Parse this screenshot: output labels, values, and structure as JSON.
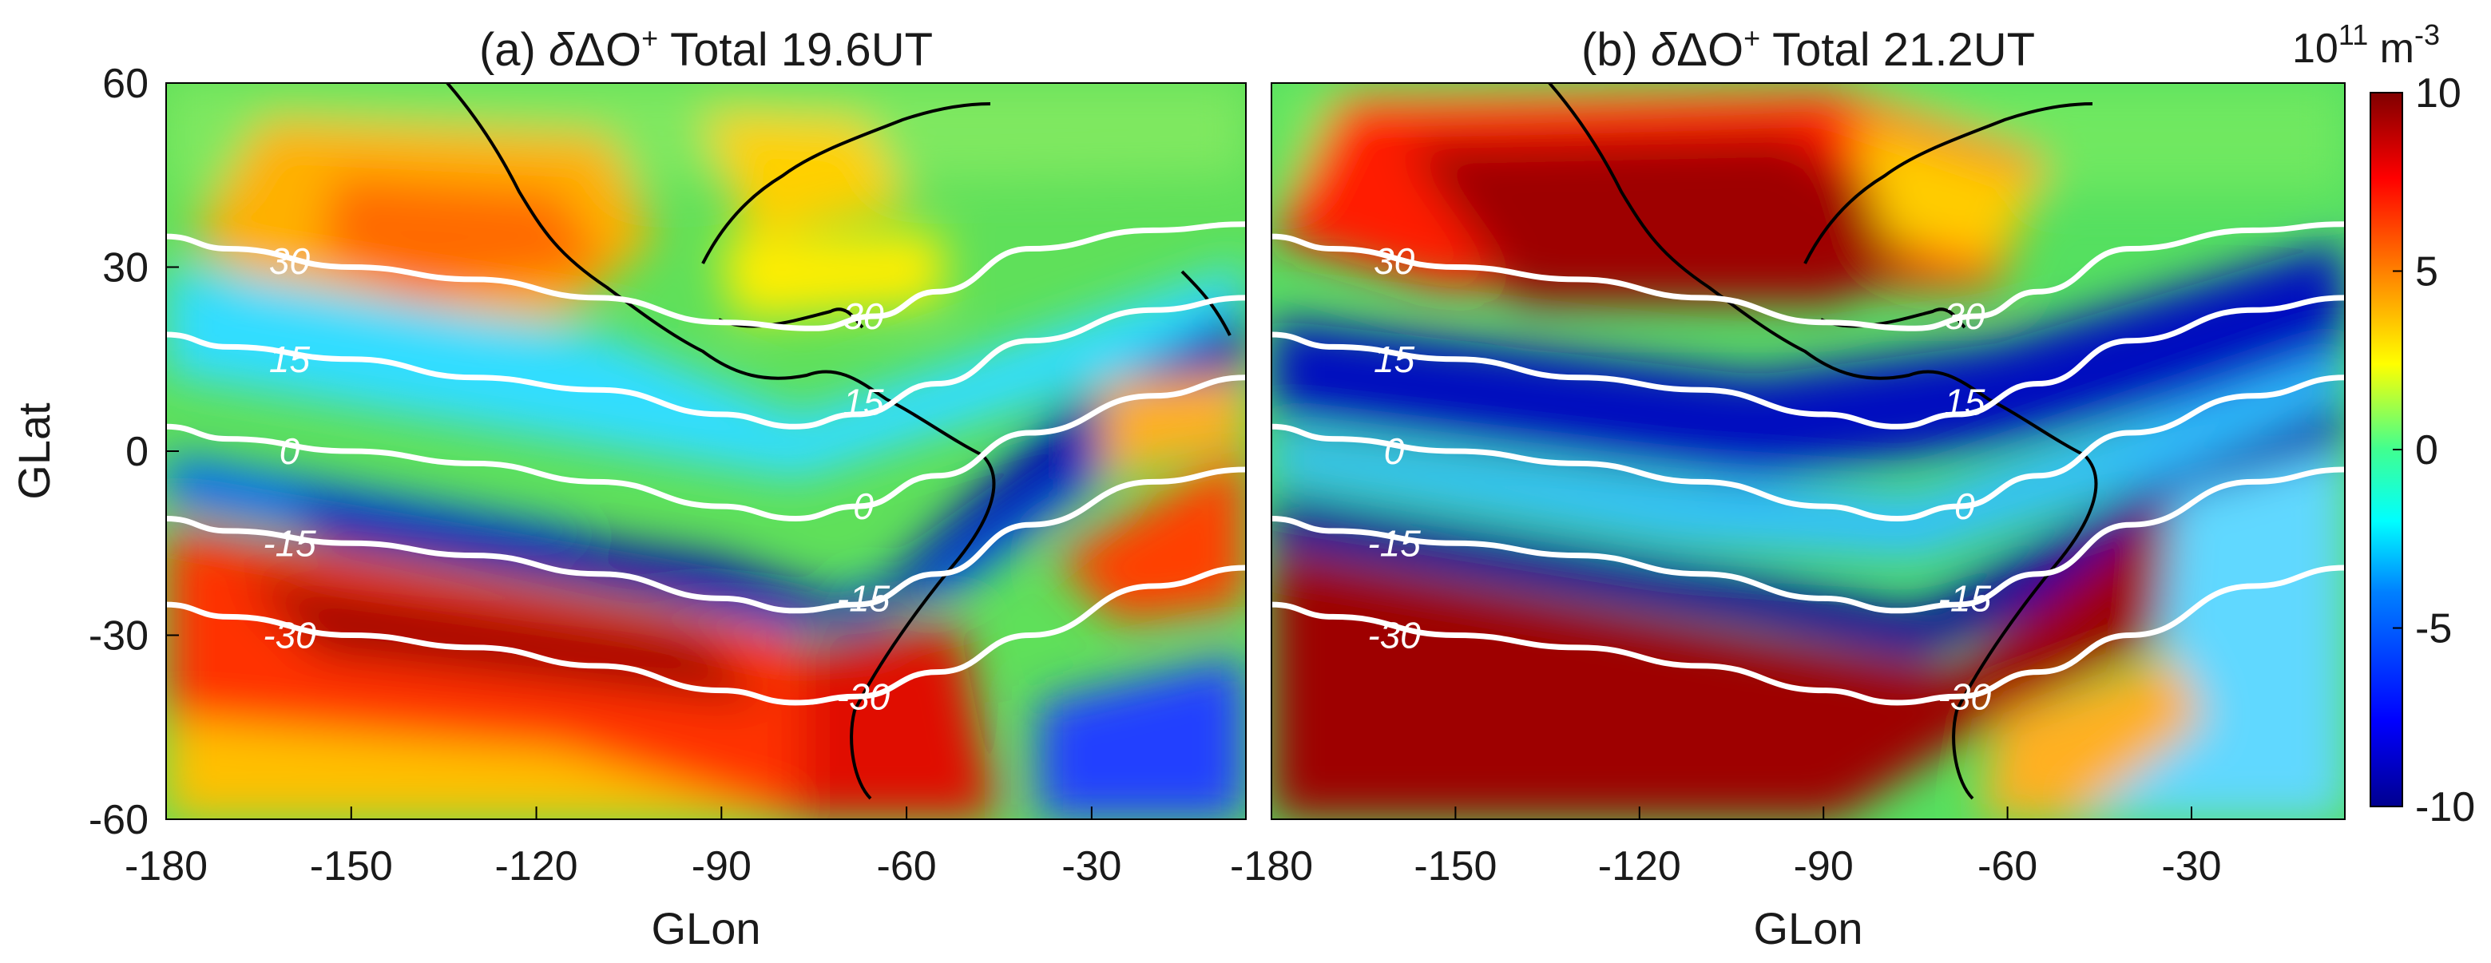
{
  "chart_data": [
    {
      "panel": "a",
      "type": "heatmap",
      "title": "(a) δΔO⁺ Total 19.6UT",
      "title_parts": {
        "prefix": "(a) ",
        "delta_var": "δ",
        "species": "ΔO",
        "sup": "+",
        "suffix": " Total 19.6UT"
      },
      "xlabel": "GLon",
      "ylabel": "GLat",
      "xlim": [
        -180,
        -5
      ],
      "ylim": [
        -60,
        60
      ],
      "xticks": [
        "-180",
        "-150",
        "-120",
        "-90",
        "-60",
        "-30"
      ],
      "yticks": [
        "60",
        "30",
        "0",
        "-30",
        "-60"
      ],
      "contour_lines": [
        {
          "level": 30,
          "label": "30",
          "points": [
            [
              -180,
              35
            ],
            [
              -170,
              33
            ],
            [
              -150,
              30
            ],
            [
              -130,
              28
            ],
            [
              -110,
              25
            ],
            [
              -90,
              21
            ],
            [
              -75,
              20
            ],
            [
              -65,
              22
            ],
            [
              -55,
              26
            ],
            [
              -40,
              33
            ],
            [
              -20,
              36
            ],
            [
              -5,
              37
            ]
          ]
        },
        {
          "level": 15,
          "label": "15",
          "points": [
            [
              -180,
              19
            ],
            [
              -170,
              17
            ],
            [
              -150,
              15
            ],
            [
              -130,
              12
            ],
            [
              -110,
              10
            ],
            [
              -90,
              6
            ],
            [
              -78,
              4
            ],
            [
              -68,
              6
            ],
            [
              -55,
              11
            ],
            [
              -40,
              18
            ],
            [
              -20,
              23
            ],
            [
              -5,
              25
            ]
          ]
        },
        {
          "level": 0,
          "label": "0",
          "points": [
            [
              -180,
              4
            ],
            [
              -170,
              2
            ],
            [
              -150,
              0
            ],
            [
              -130,
              -2
            ],
            [
              -110,
              -5
            ],
            [
              -90,
              -9
            ],
            [
              -78,
              -11
            ],
            [
              -68,
              -9
            ],
            [
              -55,
              -4
            ],
            [
              -40,
              3
            ],
            [
              -20,
              9
            ],
            [
              -5,
              12
            ]
          ]
        },
        {
          "level": -15,
          "label": "-15",
          "points": [
            [
              -180,
              -11
            ],
            [
              -170,
              -13
            ],
            [
              -150,
              -15
            ],
            [
              -130,
              -17
            ],
            [
              -110,
              -20
            ],
            [
              -90,
              -24
            ],
            [
              -78,
              -26
            ],
            [
              -68,
              -25
            ],
            [
              -55,
              -20
            ],
            [
              -40,
              -12
            ],
            [
              -20,
              -5
            ],
            [
              -5,
              -3
            ]
          ]
        },
        {
          "level": -30,
          "label": "-30",
          "points": [
            [
              -180,
              -25
            ],
            [
              -170,
              -27
            ],
            [
              -150,
              -30
            ],
            [
              -130,
              -32
            ],
            [
              -110,
              -35
            ],
            [
              -90,
              -39
            ],
            [
              -78,
              -41
            ],
            [
              -68,
              -40
            ],
            [
              -55,
              -36
            ],
            [
              -40,
              -30
            ],
            [
              -20,
              -22
            ],
            [
              -5,
              -19
            ]
          ]
        }
      ],
      "contour_label_positions": [
        {
          "label": "30",
          "x": -160,
          "y": 31
        },
        {
          "label": "15",
          "x": -160,
          "y": 15
        },
        {
          "label": "0",
          "x": -160,
          "y": 0
        },
        {
          "label": "-15",
          "x": -160,
          "y": -15
        },
        {
          "label": "-30",
          "x": -160,
          "y": -30
        },
        {
          "label": "30",
          "x": -67,
          "y": 22
        },
        {
          "label": "15",
          "x": -67,
          "y": 8
        },
        {
          "label": "0",
          "x": -67,
          "y": -9
        },
        {
          "label": "-15",
          "x": -67,
          "y": -24
        },
        {
          "label": "-30",
          "x": -67,
          "y": -40
        }
      ]
    },
    {
      "panel": "b",
      "type": "heatmap",
      "title": "(b) δΔO⁺ Total 21.2UT",
      "title_parts": {
        "prefix": "(b) ",
        "delta_var": "δ",
        "species": "ΔO",
        "sup": "+",
        "suffix": " Total 21.2UT"
      },
      "xlabel": "GLon",
      "xlim": [
        -180,
        -5
      ],
      "ylim": [
        -60,
        60
      ],
      "xticks": [
        "-180",
        "-150",
        "-120",
        "-90",
        "-60",
        "-30"
      ],
      "contour_lines": [
        {
          "level": 30,
          "label": "30",
          "points": [
            [
              -180,
              35
            ],
            [
              -170,
              33
            ],
            [
              -150,
              30
            ],
            [
              -130,
              28
            ],
            [
              -110,
              25
            ],
            [
              -90,
              21
            ],
            [
              -75,
              20
            ],
            [
              -65,
              22
            ],
            [
              -55,
              26
            ],
            [
              -40,
              33
            ],
            [
              -20,
              36
            ],
            [
              -5,
              37
            ]
          ]
        },
        {
          "level": 15,
          "label": "15",
          "points": [
            [
              -180,
              19
            ],
            [
              -170,
              17
            ],
            [
              -150,
              15
            ],
            [
              -130,
              12
            ],
            [
              -110,
              10
            ],
            [
              -90,
              6
            ],
            [
              -78,
              4
            ],
            [
              -68,
              6
            ],
            [
              -55,
              11
            ],
            [
              -40,
              18
            ],
            [
              -20,
              23
            ],
            [
              -5,
              25
            ]
          ]
        },
        {
          "level": 0,
          "label": "0",
          "points": [
            [
              -180,
              4
            ],
            [
              -170,
              2
            ],
            [
              -150,
              0
            ],
            [
              -130,
              -2
            ],
            [
              -110,
              -5
            ],
            [
              -90,
              -9
            ],
            [
              -78,
              -11
            ],
            [
              -68,
              -9
            ],
            [
              -55,
              -4
            ],
            [
              -40,
              3
            ],
            [
              -20,
              9
            ],
            [
              -5,
              12
            ]
          ]
        },
        {
          "level": -15,
          "label": "-15",
          "points": [
            [
              -180,
              -11
            ],
            [
              -170,
              -13
            ],
            [
              -150,
              -15
            ],
            [
              -130,
              -17
            ],
            [
              -110,
              -20
            ],
            [
              -90,
              -24
            ],
            [
              -78,
              -26
            ],
            [
              -68,
              -25
            ],
            [
              -55,
              -20
            ],
            [
              -40,
              -12
            ],
            [
              -20,
              -5
            ],
            [
              -5,
              -3
            ]
          ]
        },
        {
          "level": -30,
          "label": "-30",
          "points": [
            [
              -180,
              -25
            ],
            [
              -170,
              -27
            ],
            [
              -150,
              -30
            ],
            [
              -130,
              -32
            ],
            [
              -110,
              -35
            ],
            [
              -90,
              -39
            ],
            [
              -78,
              -41
            ],
            [
              -68,
              -40
            ],
            [
              -55,
              -36
            ],
            [
              -40,
              -30
            ],
            [
              -20,
              -22
            ],
            [
              -5,
              -19
            ]
          ]
        }
      ],
      "contour_label_positions": [
        {
          "label": "30",
          "x": -160,
          "y": 31
        },
        {
          "label": "15",
          "x": -160,
          "y": 15
        },
        {
          "label": "0",
          "x": -160,
          "y": 0
        },
        {
          "label": "-15",
          "x": -160,
          "y": -15
        },
        {
          "label": "-30",
          "x": -160,
          "y": -30
        },
        {
          "label": "30",
          "x": -67,
          "y": 22
        },
        {
          "label": "15",
          "x": -67,
          "y": 8
        },
        {
          "label": "0",
          "x": -67,
          "y": -9
        },
        {
          "label": "-15",
          "x": -67,
          "y": -24
        },
        {
          "label": "-30",
          "x": -67,
          "y": -40
        }
      ]
    }
  ],
  "colorbar": {
    "unit_base": "10",
    "unit_exp": "11",
    "unit_m": " m",
    "unit_m_exp": "-3",
    "range": [
      -10,
      10
    ],
    "ticks": [
      "10",
      "5",
      "0",
      "-5",
      "-10"
    ],
    "colormap": "jet",
    "colors": [
      "#00008f",
      "#0000ff",
      "#0080ff",
      "#00ffff",
      "#80ff80",
      "#ffff00",
      "#ff8000",
      "#ff0000",
      "#800000"
    ]
  }
}
